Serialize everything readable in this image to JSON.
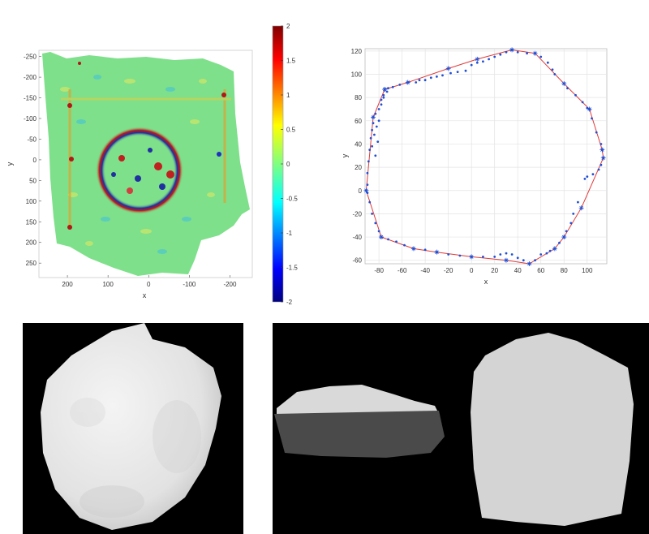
{
  "chart_data": [
    {
      "type": "heatmap",
      "xlabel": "x",
      "ylabel": "y",
      "x_ticks": [
        "200",
        "100",
        "0",
        "-100",
        "-200"
      ],
      "y_ticks": [
        "-250",
        "-200",
        "-150",
        "-100",
        "-50",
        "0",
        "50",
        "100",
        "150",
        "200",
        "250"
      ],
      "xlim": [
        270,
        -255
      ],
      "ylim": [
        -265,
        285
      ],
      "colorbar_ticks": [
        "2",
        "1.5",
        "1",
        "0.5",
        "0",
        "-0.5",
        "-1",
        "-1.5",
        "-2"
      ],
      "colorbar_range": [
        -2,
        2
      ],
      "colormap": "jet",
      "background_color": "#7ee08a"
    },
    {
      "type": "scatter",
      "xlabel": "x",
      "ylabel": "y",
      "x_ticks": [
        "-80",
        "-60",
        "-40",
        "-20",
        "0",
        "20",
        "40",
        "60",
        "80",
        "100"
      ],
      "y_ticks": [
        "120",
        "100",
        "80",
        "60",
        "40",
        "20",
        "0",
        "-20",
        "-40",
        "-60"
      ],
      "xlim": [
        -92,
        117
      ],
      "ylim": [
        -63,
        122
      ],
      "grid": true,
      "point_color": "#1f4fd6",
      "hull_color": "#e03a3a",
      "hull": [
        [
          -75,
          87
        ],
        [
          -85,
          63
        ],
        [
          -91,
          0
        ],
        [
          -78,
          -40
        ],
        [
          -50,
          -50
        ],
        [
          -30,
          -53
        ],
        [
          0,
          -57
        ],
        [
          30,
          -60
        ],
        [
          50,
          -63
        ],
        [
          72,
          -50
        ],
        [
          80,
          -40
        ],
        [
          95,
          -15
        ],
        [
          114,
          28
        ],
        [
          113,
          35
        ],
        [
          102,
          70
        ],
        [
          80,
          92
        ],
        [
          55,
          118
        ],
        [
          35,
          121
        ],
        [
          5,
          113
        ],
        [
          -20,
          105
        ],
        [
          -55,
          93
        ],
        [
          -75,
          87
        ]
      ],
      "points": [
        [
          -75,
          87
        ],
        [
          -73,
          85
        ],
        [
          -76,
          82
        ],
        [
          -78,
          78
        ],
        [
          -72,
          88
        ],
        [
          -68,
          89
        ],
        [
          -62,
          91
        ],
        [
          -55,
          93
        ],
        [
          -48,
          93
        ],
        [
          -45,
          95
        ],
        [
          -40,
          95
        ],
        [
          -35,
          97
        ],
        [
          -30,
          98
        ],
        [
          -25,
          99
        ],
        [
          -18,
          101
        ],
        [
          -12,
          102
        ],
        [
          -5,
          103
        ],
        [
          0,
          108
        ],
        [
          5,
          110
        ],
        [
          10,
          111
        ],
        [
          15,
          113
        ],
        [
          20,
          115
        ],
        [
          25,
          117
        ],
        [
          30,
          119
        ],
        [
          35,
          121
        ],
        [
          40,
          119
        ],
        [
          48,
          118
        ],
        [
          55,
          118
        ],
        [
          60,
          115
        ],
        [
          66,
          110
        ],
        [
          70,
          104
        ],
        [
          72,
          100
        ],
        [
          80,
          92
        ],
        [
          83,
          88
        ],
        [
          90,
          82
        ],
        [
          96,
          76
        ],
        [
          100,
          71
        ],
        [
          102,
          70
        ],
        [
          104,
          62
        ],
        [
          108,
          50
        ],
        [
          112,
          40
        ],
        [
          113,
          35
        ],
        [
          114,
          28
        ],
        [
          112,
          22
        ],
        [
          110,
          18
        ],
        [
          105,
          14
        ],
        [
          100,
          12
        ],
        [
          98,
          10
        ],
        [
          92,
          -10
        ],
        [
          88,
          -20
        ],
        [
          86,
          -28
        ],
        [
          82,
          -35
        ],
        [
          80,
          -40
        ],
        [
          76,
          -45
        ],
        [
          72,
          -50
        ],
        [
          68,
          -52
        ],
        [
          65,
          -54
        ],
        [
          60,
          -55
        ],
        [
          55,
          -60
        ],
        [
          50,
          -63
        ],
        [
          45,
          -60
        ],
        [
          40,
          -58
        ],
        [
          35,
          -55
        ],
        [
          30,
          -54
        ],
        [
          25,
          -55
        ],
        [
          20,
          -57
        ],
        [
          10,
          -57
        ],
        [
          0,
          -57
        ],
        [
          -10,
          -56
        ],
        [
          -20,
          -55
        ],
        [
          -30,
          -53
        ],
        [
          -40,
          -51
        ],
        [
          -50,
          -50
        ],
        [
          -58,
          -47
        ],
        [
          -65,
          -44
        ],
        [
          -72,
          -42
        ],
        [
          -78,
          -40
        ],
        [
          -80,
          -35
        ],
        [
          -83,
          -28
        ],
        [
          -86,
          -20
        ],
        [
          -88,
          -10
        ],
        [
          -90,
          -2
        ],
        [
          -91,
          0
        ],
        [
          -90,
          5
        ],
        [
          -90,
          15
        ],
        [
          -89,
          25
        ],
        [
          -88,
          35
        ],
        [
          -87,
          45
        ],
        [
          -86,
          52
        ],
        [
          -85,
          58
        ],
        [
          -85,
          63
        ],
        [
          -83,
          66
        ],
        [
          -80,
          70
        ],
        [
          -78,
          74
        ],
        [
          -76,
          80
        ],
        [
          -80,
          60
        ],
        [
          -82,
          55
        ],
        [
          -84,
          48
        ],
        [
          -81,
          42
        ],
        [
          -86,
          38
        ],
        [
          -83,
          30
        ]
      ]
    }
  ]
}
